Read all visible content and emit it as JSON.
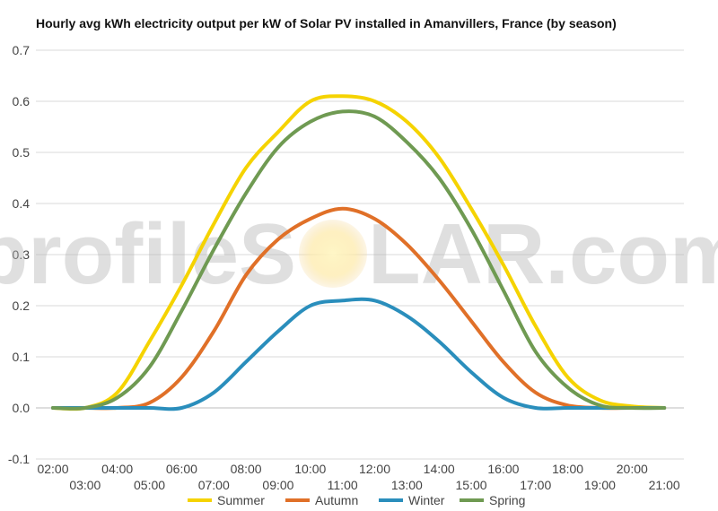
{
  "chart_data": {
    "type": "line",
    "title": "Hourly avg kWh electricity output per kW of Solar PV installed in Amanvillers, France (by season)",
    "xlabel": "",
    "ylabel": "",
    "ylim": [
      -0.1,
      0.7
    ],
    "yticks": [
      "-0.1",
      "0.0",
      "0.1",
      "0.2",
      "0.3",
      "0.4",
      "0.5",
      "0.6",
      "0.7"
    ],
    "grid": true,
    "legend_position": "bottom",
    "x": [
      "02:00",
      "03:00",
      "04:00",
      "05:00",
      "06:00",
      "07:00",
      "08:00",
      "09:00",
      "10:00",
      "11:00",
      "12:00",
      "13:00",
      "14:00",
      "15:00",
      "16:00",
      "17:00",
      "18:00",
      "19:00",
      "20:00",
      "21:00"
    ],
    "series": [
      {
        "name": "Summer",
        "color": "#f5d300",
        "values": [
          0,
          0,
          0.03,
          0.13,
          0.24,
          0.36,
          0.47,
          0.54,
          0.6,
          0.61,
          0.6,
          0.56,
          0.49,
          0.39,
          0.28,
          0.16,
          0.06,
          0.015,
          0.003,
          0
        ]
      },
      {
        "name": "Autumn",
        "color": "#e07028",
        "values": [
          0,
          0,
          0,
          0.01,
          0.06,
          0.15,
          0.26,
          0.33,
          0.37,
          0.39,
          0.37,
          0.32,
          0.25,
          0.17,
          0.09,
          0.03,
          0.005,
          0,
          0,
          0
        ]
      },
      {
        "name": "Winter",
        "color": "#2a8ebc",
        "values": [
          0,
          0,
          0,
          0,
          0,
          0.03,
          0.09,
          0.15,
          0.2,
          0.21,
          0.21,
          0.18,
          0.13,
          0.07,
          0.02,
          0,
          0,
          0,
          0,
          0
        ]
      },
      {
        "name": "Spring",
        "color": "#6f9a52",
        "values": [
          0,
          0,
          0.02,
          0.08,
          0.19,
          0.31,
          0.42,
          0.51,
          0.56,
          0.58,
          0.57,
          0.52,
          0.45,
          0.35,
          0.23,
          0.11,
          0.04,
          0.005,
          0,
          0
        ]
      }
    ]
  },
  "watermark": {
    "text_left": "profileS",
    "text_right": "LAR.com"
  }
}
